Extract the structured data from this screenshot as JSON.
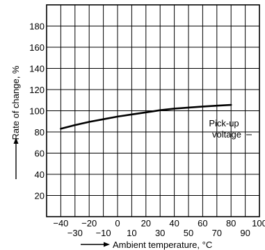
{
  "chart_data": {
    "type": "line",
    "title": "",
    "xlabel": "Ambient temperature, °C",
    "ylabel": "Rate of change, %",
    "xlim": [
      -50,
      100
    ],
    "ylim": [
      0,
      200
    ],
    "grid": true,
    "x_ticks_upper": [
      -40,
      -20,
      0,
      20,
      40,
      60,
      80,
      100
    ],
    "x_ticks_lower": [
      -30,
      -10,
      10,
      30,
      50,
      70,
      90
    ],
    "y_ticks": [
      20,
      40,
      60,
      80,
      100,
      120,
      140,
      160,
      180
    ],
    "x_tick_labels_upper": [
      "−40",
      "−20",
      "0",
      "20",
      "40",
      "60",
      "80",
      "100"
    ],
    "x_tick_labels_lower": [
      "−30",
      "−10",
      "10",
      "30",
      "50",
      "70",
      "90"
    ],
    "y_tick_labels": [
      "20",
      "40",
      "60",
      "80",
      "100",
      "120",
      "140",
      "160",
      "180"
    ],
    "series": [
      {
        "name": "Pick-up voltage",
        "x": [
          -40,
          -30,
          -20,
          -10,
          0,
          10,
          20,
          25,
          30,
          40,
          50,
          60,
          70,
          80
        ],
        "y": [
          83,
          86.5,
          89.5,
          92,
          94.5,
          96.5,
          98.5,
          99.5,
          100.5,
          102,
          103,
          104,
          104.8,
          105.5
        ]
      }
    ],
    "annotations": [
      {
        "text_lines": [
          "Pick-up",
          "voltage"
        ],
        "series": 0
      }
    ]
  }
}
